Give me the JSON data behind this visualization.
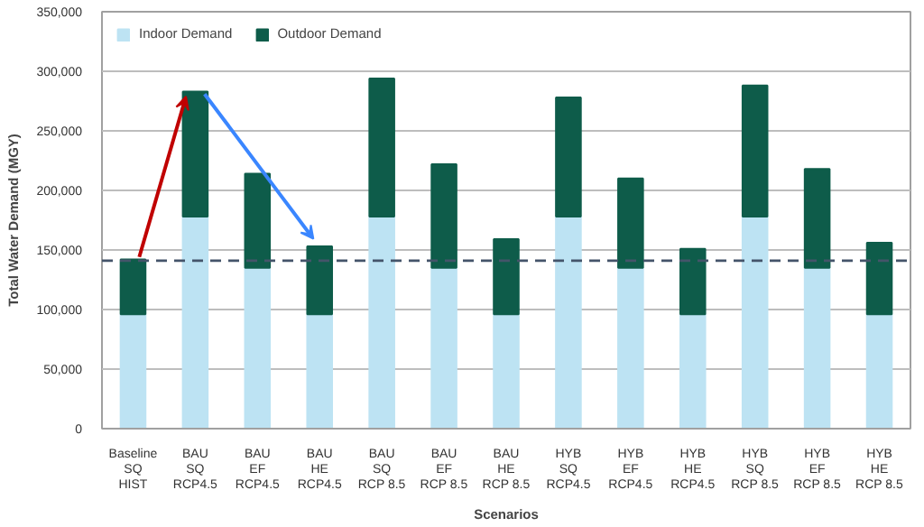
{
  "chart_data": {
    "type": "bar",
    "stacked": true,
    "xlabel": "Scenarios",
    "ylabel": "Total Water Demand (MGY)",
    "categories": [
      "Baseline\nSQ\nHIST",
      "BAU\nSQ\nRCP4.5",
      "BAU\nEF\nRCP4.5",
      "BAU\nHE\nRCP4.5",
      "BAU\nSQ\nRCP 8.5",
      "BAU\nEF\nRCP 8.5",
      "BAU\nHE\nRCP 8.5",
      "HYB\nSQ\nRCP4.5",
      "HYB\nEF\nRCP4.5",
      "HYB\nHE\nRCP4.5",
      "HYB\nSQ\nRCP 8.5",
      "HYB\nEF\nRCP 8.5",
      "HYB\nHE\nRCP 8.5"
    ],
    "series": [
      {
        "name": "Indoor Demand",
        "color": "#bde3f3",
        "values": [
          96000,
          178000,
          135000,
          96000,
          178000,
          135000,
          96000,
          178000,
          135000,
          96000,
          178000,
          135000,
          96000
        ]
      },
      {
        "name": "Outdoor Demand",
        "color": "#0e5c4a",
        "values": [
          46000,
          105000,
          79000,
          57000,
          116000,
          87000,
          63000,
          100000,
          75000,
          55000,
          110000,
          83000,
          60000
        ]
      }
    ],
    "ylim": [
      0,
      350000
    ],
    "yticks": [
      0,
      {
        "value": 50000,
        "label": "50,000"
      },
      {
        "value": 100000,
        "label": "100,000"
      },
      {
        "value": 150000,
        "label": "150,000"
      },
      {
        "value": 200000,
        "label": "200,000"
      },
      {
        "value": 250000,
        "label": "250,000"
      },
      {
        "value": 300000,
        "label": "300,000"
      },
      {
        "value": 350000,
        "label": "350,000"
      }
    ],
    "ref_lines": [
      {
        "axis": "y",
        "value": 141000,
        "color": "#44546a",
        "line_style": "dashed"
      }
    ],
    "grid": "y",
    "legend": "top left"
  }
}
